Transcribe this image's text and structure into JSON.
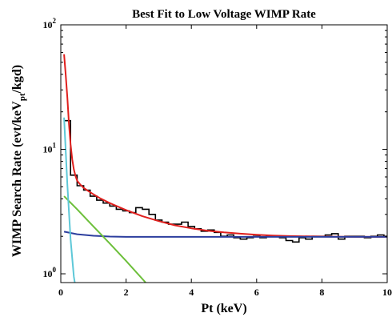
{
  "chart_data": {
    "type": "line",
    "title": "Best Fit to Low Voltage WIMP Rate",
    "xlabel": "Pt (keV)",
    "ylabel": {
      "part1": "WIMP Search Rate (evt/keV",
      "sub": "pt",
      "part2": "/kgd)"
    },
    "xlim": [
      0,
      10
    ],
    "ylim": [
      0.85,
      100
    ],
    "yscale": "log",
    "grid": false,
    "x_ticks": [
      {
        "value": 0,
        "label": "0"
      },
      {
        "value": 2,
        "label": "2"
      },
      {
        "value": 4,
        "label": "4"
      },
      {
        "value": 6,
        "label": "6"
      },
      {
        "value": 8,
        "label": "8"
      },
      {
        "value": 10,
        "label": "10"
      }
    ],
    "y_ticks": [
      {
        "value": 1,
        "base": "10",
        "exp": "0"
      },
      {
        "value": 10,
        "base": "10",
        "exp": "1"
      },
      {
        "value": 100,
        "base": "10",
        "exp": "2"
      }
    ],
    "series": [
      {
        "type": "step",
        "color": "#000000",
        "bin_edges": [
          0.1,
          0.3,
          0.5,
          0.7,
          0.9,
          1.1,
          1.3,
          1.5,
          1.7,
          1.9,
          2.1,
          2.3,
          2.5,
          2.7,
          2.9,
          3.1,
          3.3,
          3.5,
          3.7,
          3.9,
          4.1,
          4.3,
          4.5,
          4.7,
          4.9,
          5.1,
          5.3,
          5.5,
          5.7,
          5.9,
          6.1,
          6.3,
          6.5,
          6.7,
          6.9,
          7.1,
          7.3,
          7.5,
          7.7,
          7.9,
          8.1,
          8.3,
          8.5,
          8.7,
          8.9,
          9.1,
          9.3,
          9.5,
          9.7,
          9.9,
          10.0
        ],
        "values": [
          17,
          6.2,
          5.1,
          4.7,
          4.2,
          3.9,
          3.7,
          3.5,
          3.3,
          3.2,
          3.1,
          3.4,
          3.3,
          3.0,
          2.7,
          2.6,
          2.5,
          2.5,
          2.6,
          2.4,
          2.3,
          2.2,
          2.25,
          2.15,
          2.0,
          2.05,
          1.95,
          1.9,
          1.95,
          2.0,
          1.95,
          2.0,
          2.0,
          1.95,
          1.85,
          1.8,
          1.95,
          1.9,
          2.0,
          2.0,
          2.05,
          2.1,
          1.9,
          2.0,
          2.0,
          2.0,
          1.95,
          2.0,
          2.05,
          2.0
        ]
      },
      {
        "name": "",
        "color": "#e0201e",
        "x": [
          0.1,
          0.15,
          0.2,
          0.25,
          0.3,
          0.35,
          0.4,
          0.45,
          0.5,
          0.6,
          0.7,
          0.8,
          1.0,
          1.2,
          1.5,
          2.0,
          2.5,
          3.0,
          3.5,
          4.0,
          4.5,
          5.0,
          5.5,
          6.0,
          6.5,
          7.0,
          8.0,
          9.0,
          10.0
        ],
        "y": [
          58,
          40,
          26,
          16,
          11,
          8.3,
          6.9,
          6.1,
          5.6,
          5.2,
          4.9,
          4.7,
          4.35,
          4.05,
          3.7,
          3.25,
          2.9,
          2.65,
          2.45,
          2.32,
          2.22,
          2.15,
          2.1,
          2.06,
          2.03,
          2.01,
          1.99,
          1.98,
          1.98
        ]
      },
      {
        "name": "",
        "color": "#2c3e9e",
        "x": [
          0.1,
          0.5,
          1.0,
          1.5,
          2.0,
          3.0,
          4.0,
          5.0,
          6.0,
          7.0,
          8.0,
          9.0,
          10.0
        ],
        "y": [
          2.18,
          2.08,
          2.02,
          1.99,
          1.98,
          1.98,
          1.98,
          1.98,
          1.98,
          1.98,
          1.98,
          1.98,
          1.98
        ]
      },
      {
        "name": "",
        "color": "#6cbf3a",
        "x": [
          0.1,
          0.5,
          1.0,
          1.5,
          2.0,
          2.6
        ],
        "y": [
          4.2,
          3.3,
          2.4,
          1.75,
          1.27,
          0.85
        ]
      },
      {
        "name": "",
        "color": "#5ec8d8",
        "x": [
          0.1,
          0.2,
          0.3,
          0.4,
          0.43
        ],
        "y": [
          18,
          5.2,
          1.9,
          0.95,
          0.85
        ]
      }
    ]
  }
}
